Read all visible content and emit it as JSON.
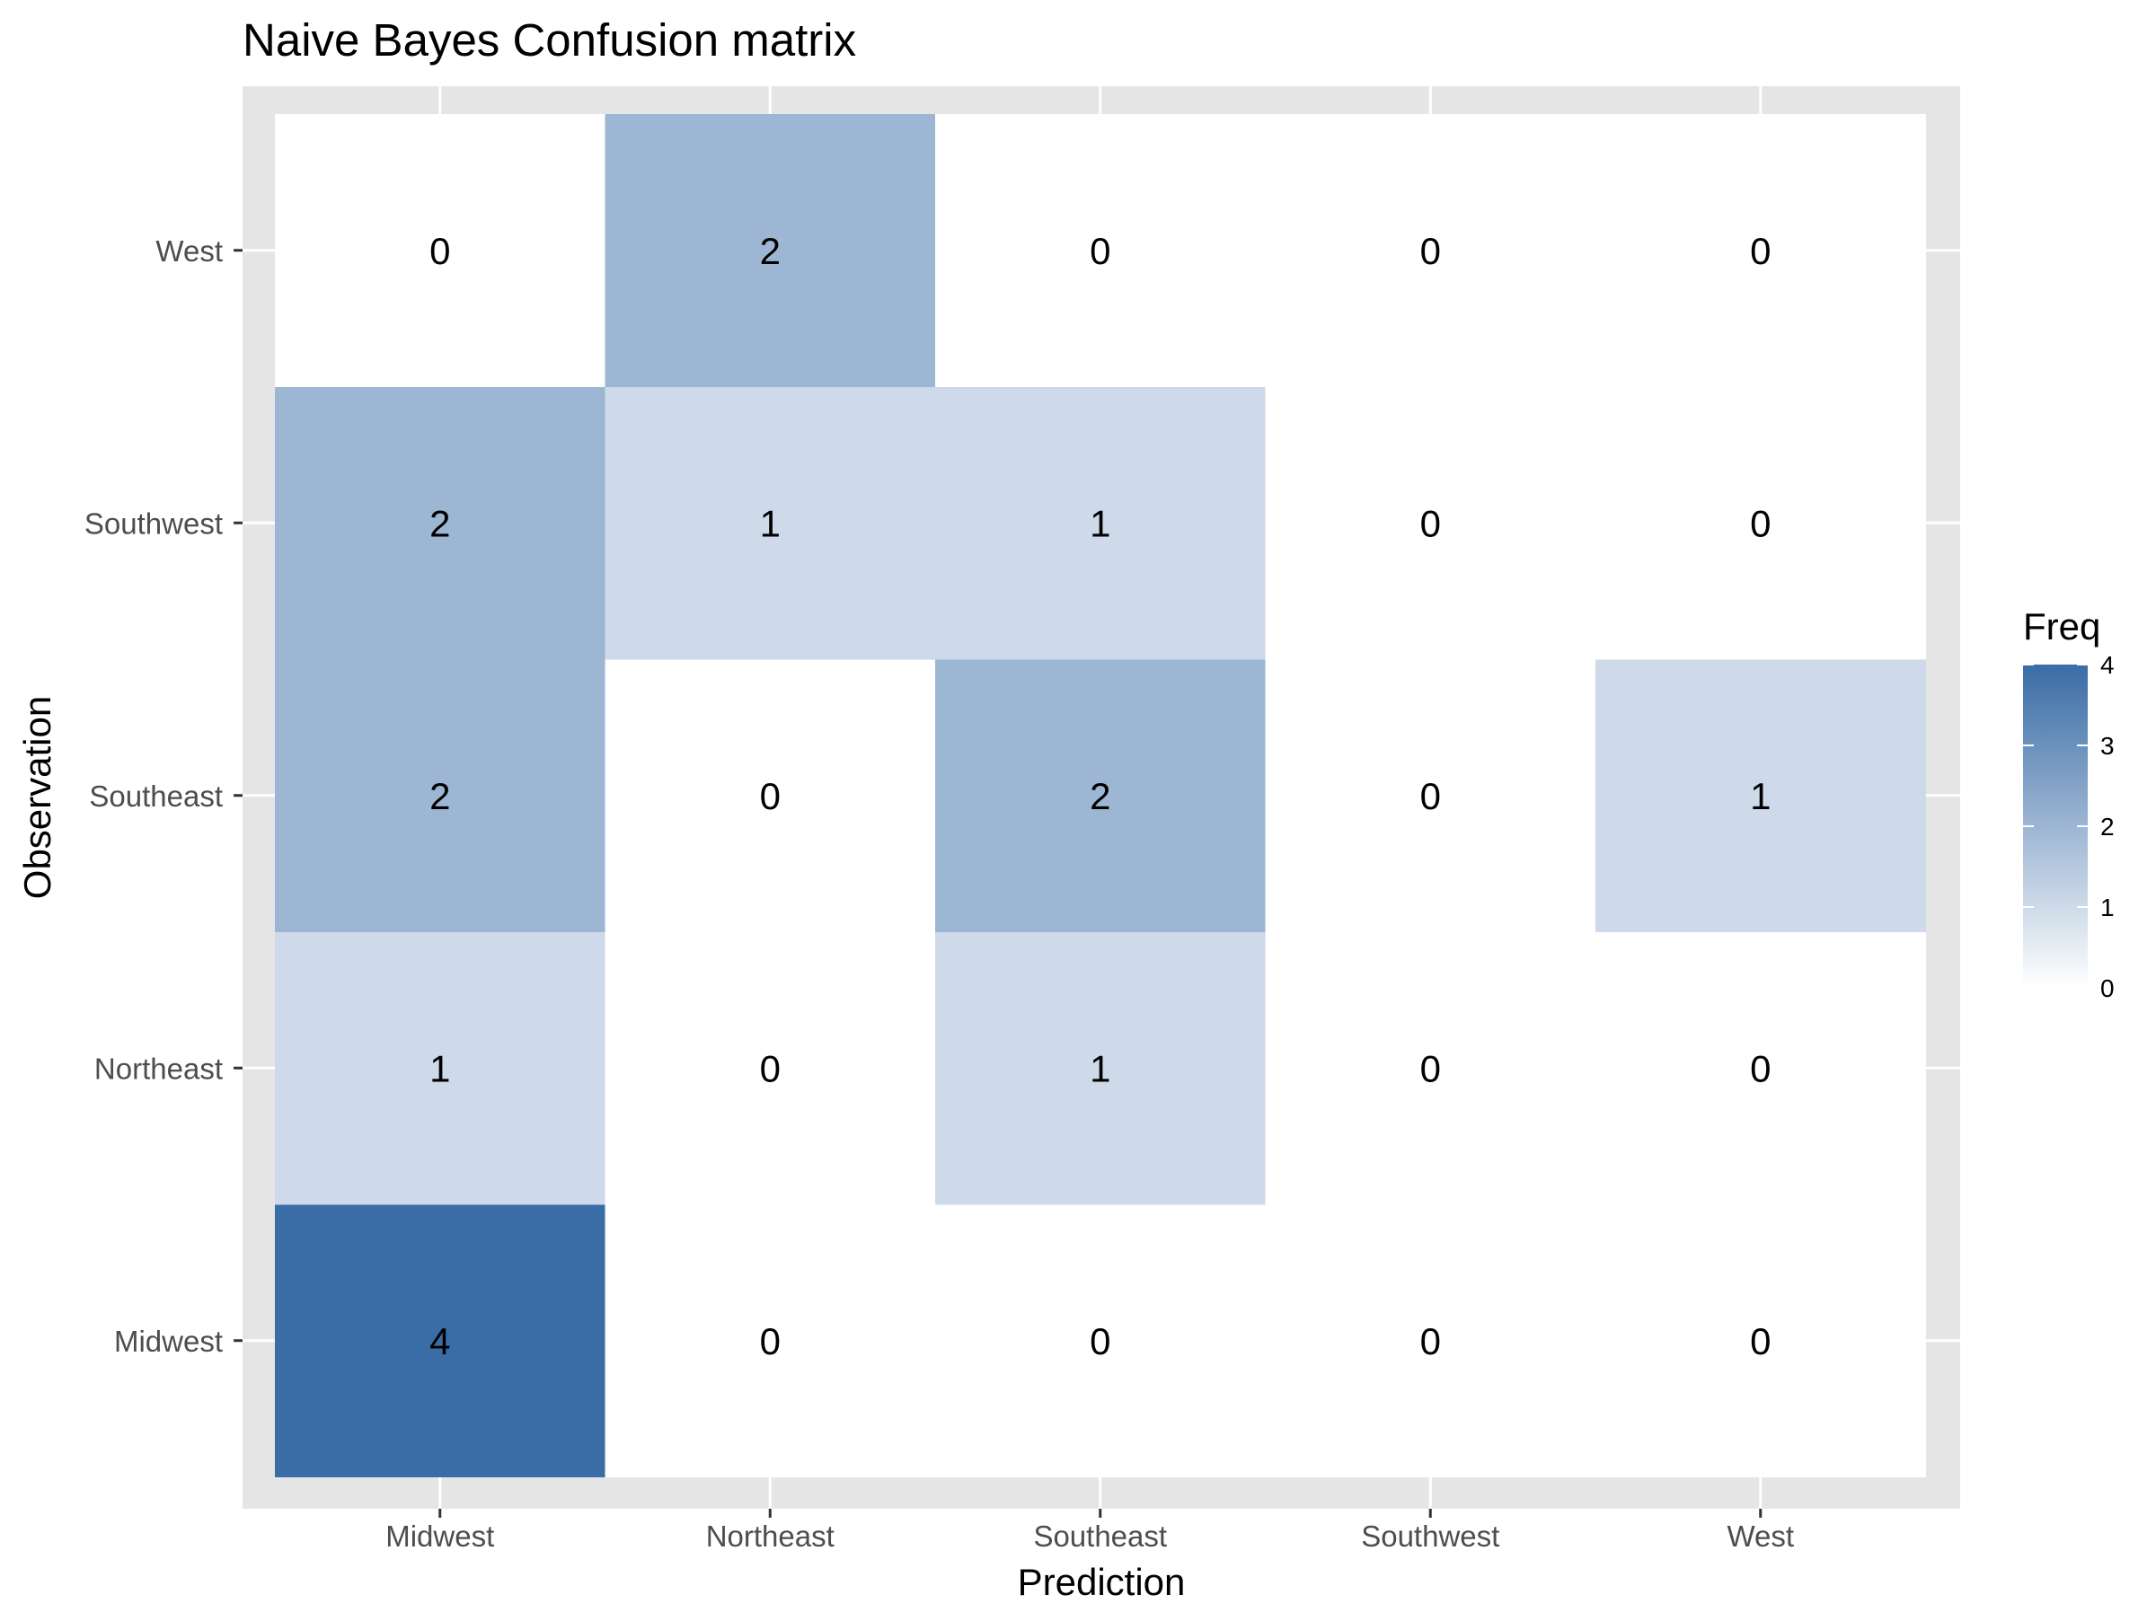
{
  "chart_data": {
    "type": "heatmap",
    "title": "Naive Bayes Confusion matrix",
    "xlabel": "Prediction",
    "ylabel": "Observation",
    "x_categories": [
      "Midwest",
      "Northeast",
      "Southeast",
      "Southwest",
      "West"
    ],
    "y_categories": [
      "Midwest",
      "Northeast",
      "Southeast",
      "Southwest",
      "West"
    ],
    "cells": [
      {
        "prediction": "Midwest",
        "observation": "Midwest",
        "freq": 4
      },
      {
        "prediction": "Northeast",
        "observation": "Midwest",
        "freq": 0
      },
      {
        "prediction": "Southeast",
        "observation": "Midwest",
        "freq": 0
      },
      {
        "prediction": "Southwest",
        "observation": "Midwest",
        "freq": 0
      },
      {
        "prediction": "West",
        "observation": "Midwest",
        "freq": 0
      },
      {
        "prediction": "Midwest",
        "observation": "Northeast",
        "freq": 1
      },
      {
        "prediction": "Northeast",
        "observation": "Northeast",
        "freq": 0
      },
      {
        "prediction": "Southeast",
        "observation": "Northeast",
        "freq": 1
      },
      {
        "prediction": "Southwest",
        "observation": "Northeast",
        "freq": 0
      },
      {
        "prediction": "West",
        "observation": "Northeast",
        "freq": 0
      },
      {
        "prediction": "Midwest",
        "observation": "Southeast",
        "freq": 2
      },
      {
        "prediction": "Northeast",
        "observation": "Southeast",
        "freq": 0
      },
      {
        "prediction": "Southeast",
        "observation": "Southeast",
        "freq": 2
      },
      {
        "prediction": "Southwest",
        "observation": "Southeast",
        "freq": 0
      },
      {
        "prediction": "West",
        "observation": "Southeast",
        "freq": 1
      },
      {
        "prediction": "Midwest",
        "observation": "Southwest",
        "freq": 2
      },
      {
        "prediction": "Northeast",
        "observation": "Southwest",
        "freq": 1
      },
      {
        "prediction": "Southeast",
        "observation": "Southwest",
        "freq": 1
      },
      {
        "prediction": "Southwest",
        "observation": "Southwest",
        "freq": 0
      },
      {
        "prediction": "West",
        "observation": "Southwest",
        "freq": 0
      },
      {
        "prediction": "Midwest",
        "observation": "West",
        "freq": 0
      },
      {
        "prediction": "Northeast",
        "observation": "West",
        "freq": 2
      },
      {
        "prediction": "Southeast",
        "observation": "West",
        "freq": 0
      },
      {
        "prediction": "Southwest",
        "observation": "West",
        "freq": 0
      },
      {
        "prediction": "West",
        "observation": "West",
        "freq": 0
      }
    ],
    "legend": {
      "title": "Freq",
      "min": 0,
      "max": 4,
      "ticks": [
        0,
        1,
        2,
        3,
        4
      ],
      "low_color": "#ffffff",
      "high_color": "#3a6ca6",
      "placement": "right"
    },
    "panel_background": "#e5e5e5",
    "grid_color": "#ffffff",
    "grid": true
  }
}
